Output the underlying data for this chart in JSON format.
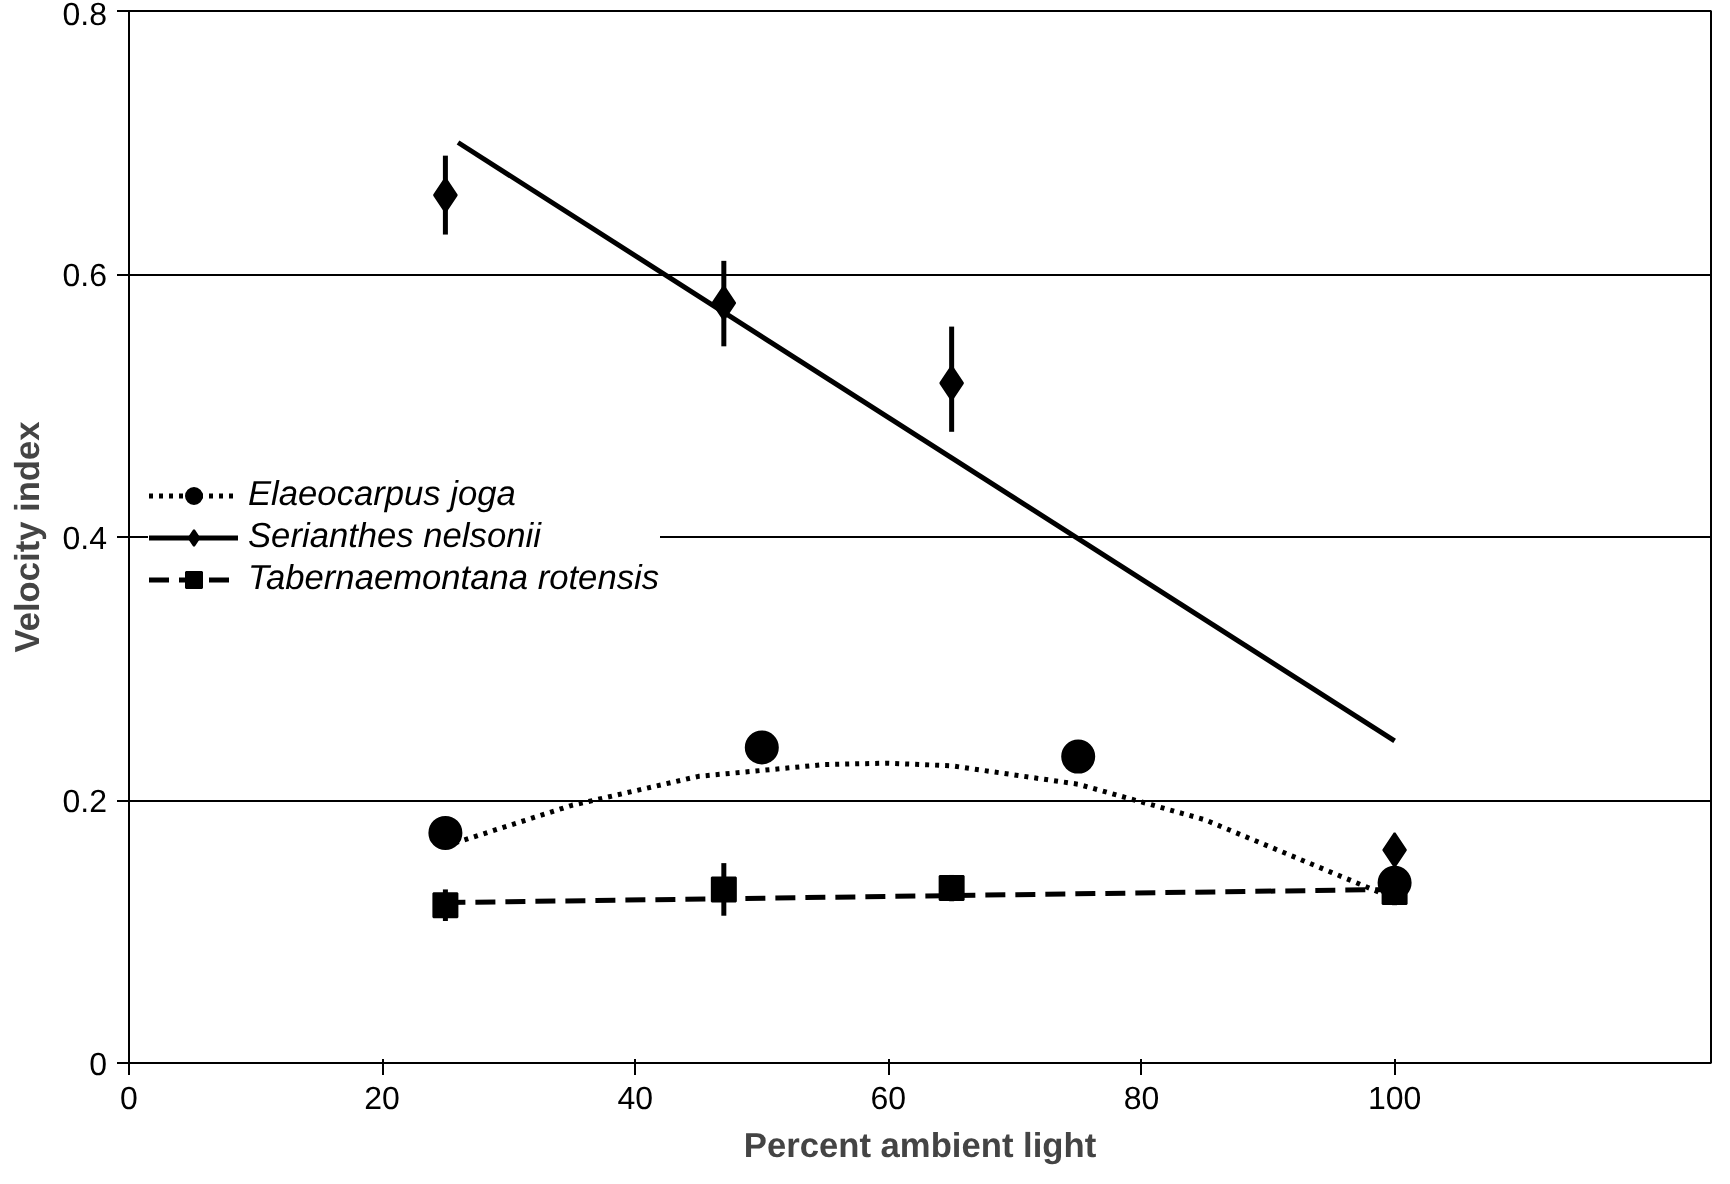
{
  "chart_data": {
    "type": "scatter",
    "xlabel": "Percent ambient light",
    "ylabel": "Velocity index",
    "xlim": [
      0,
      125
    ],
    "xticks": [
      0,
      20,
      40,
      60,
      80,
      100
    ],
    "ylim": [
      0,
      0.8
    ],
    "yticks": [
      0,
      0.2,
      0.4,
      0.6,
      0.8
    ],
    "grid": "y",
    "legend": "left",
    "series": [
      {
        "name": "Elaeocarpus joga",
        "marker": "circle",
        "color": "#000000",
        "x": [
          25,
          50,
          75,
          100
        ],
        "values": [
          0.175,
          0.24,
          0.233,
          0.137
        ],
        "errors": [
          0.012,
          0.012,
          0.012,
          0.012
        ]
      },
      {
        "type": "line",
        "line_style": "dotted",
        "marker": "none",
        "color": "#000000",
        "x": [
          25,
          35,
          45,
          55,
          60,
          65,
          75,
          85,
          95,
          100
        ],
        "values": [
          0.165,
          0.196,
          0.218,
          0.227,
          0.228,
          0.226,
          0.212,
          0.185,
          0.145,
          0.125
        ]
      },
      {
        "name": "Serianthes nelsonii",
        "marker": "diamond",
        "color": "#000000",
        "x": [
          25,
          47,
          65,
          100
        ],
        "values": [
          0.66,
          0.578,
          0.517,
          0.162
        ],
        "errors": [
          [
            0.63,
            0.69
          ],
          [
            0.545,
            0.61
          ],
          [
            0.48,
            0.56
          ],
          null
        ]
      },
      {
        "type": "line",
        "line_style": "solid",
        "marker": "none",
        "color": "#000000",
        "x": [
          26,
          100
        ],
        "values": [
          0.7,
          0.245
        ]
      },
      {
        "name": "Tabernaemontana rotensis",
        "marker": "square",
        "color": "#000000",
        "x": [
          25,
          47,
          65,
          100
        ],
        "values": [
          0.12,
          0.132,
          0.133,
          0.13
        ],
        "errors": [
          0.012,
          0.02,
          0.01,
          0.01
        ]
      },
      {
        "type": "line",
        "line_style": "dashed",
        "marker": "none",
        "color": "#000000",
        "x": [
          25,
          100
        ],
        "values": [
          0.122,
          0.132
        ]
      }
    ]
  }
}
